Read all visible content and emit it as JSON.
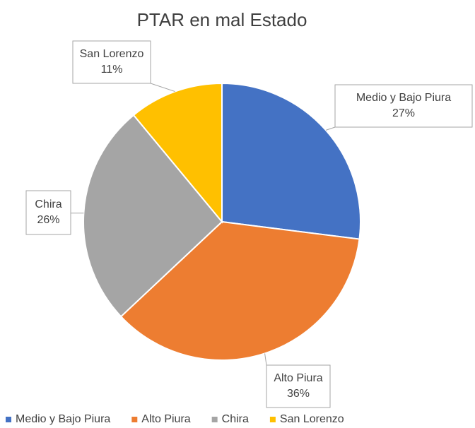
{
  "chart_data": {
    "type": "pie",
    "title": "PTAR en mal Estado",
    "categories": [
      "Medio y Bajo Piura",
      "Alto Piura",
      "Chira",
      "San Lorenzo"
    ],
    "values": [
      27,
      36,
      26,
      11
    ],
    "value_labels": [
      "27%",
      "36%",
      "26%",
      "11%"
    ],
    "colors": [
      "#4472c4",
      "#ed7d31",
      "#a5a5a5",
      "#ffc000"
    ],
    "legend": "bottom"
  }
}
